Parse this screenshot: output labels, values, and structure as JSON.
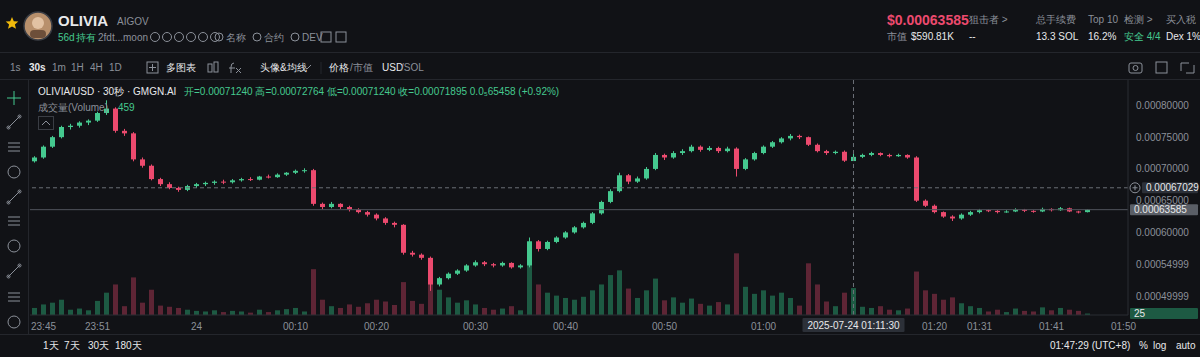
{
  "header": {
    "name": "OLIVIA",
    "tag": "AIGOV",
    "age": "56d",
    "holding": "持有",
    "address": "2fdt...moon",
    "links": [
      "名称",
      "合约",
      "DEV"
    ],
    "price": "$0.00063585",
    "market_cap_label": "市值",
    "market_cap": "$590.81K",
    "stats": [
      {
        "label": "狙击者 >",
        "value": "--"
      },
      {
        "label": "总手续费",
        "value": "13.3 SOL"
      },
      {
        "label": "Top 10",
        "value": "16.2%"
      },
      {
        "label": "检测 >",
        "value": "安全 4/4"
      },
      {
        "label": "买入税",
        "value": "Dex 1%"
      }
    ]
  },
  "toolbar": {
    "intervals": [
      "1s",
      "30s",
      "1m",
      "1H",
      "4H",
      "1D"
    ],
    "active_interval": "30s",
    "buttons": [
      "多图表",
      "头像&均线"
    ],
    "price_toggle": [
      "价格",
      "/市值"
    ],
    "currency_toggle": [
      "USD",
      "/SOL"
    ]
  },
  "chart_data": {
    "type": "candlestick",
    "title": "OLIVIA/USD · 30秒 · GMGN.AI",
    "ohlc_label": "开=0.00071240 高=0.00072764 低=0.00071240 收=0.00071895 0.0₅65458 (+0.92%)",
    "volume_label": "成交量(Volume)",
    "categories": [
      null,
      "23:45",
      null,
      null,
      null,
      null,
      null,
      "23:51",
      null,
      null,
      null,
      null,
      null,
      null,
      null,
      null,
      null,
      null,
      "24",
      null,
      null,
      null,
      null,
      null,
      null,
      null,
      null,
      null,
      null,
      "00:10",
      null,
      null,
      null,
      null,
      null,
      null,
      null,
      null,
      "00:20",
      null,
      null,
      null,
      null,
      null,
      null,
      null,
      null,
      null,
      null,
      "00:30",
      null,
      null,
      null,
      null,
      null,
      null,
      null,
      null,
      null,
      "00:40",
      null,
      null,
      null,
      null,
      null,
      null,
      null,
      null,
      null,
      null,
      "00:50",
      null,
      null,
      null,
      null,
      null,
      null,
      null,
      null,
      null,
      null,
      "01:00",
      null,
      null,
      null,
      null,
      null,
      null,
      null,
      null,
      null,
      null,
      null,
      null,
      null,
      null,
      null,
      null,
      null,
      null,
      "01:20",
      null,
      null,
      null,
      null,
      "01:31",
      null,
      null,
      null,
      null,
      null,
      null,
      null,
      "01:41",
      null,
      null,
      null,
      null,
      null,
      null,
      null,
      "01:50"
    ],
    "open": [
      0.000712,
      0.000718,
      0.000735,
      0.00075,
      0.000766,
      0.000768,
      0.000773,
      0.000776,
      0.000788,
      0.000795,
      0.00076,
      0.000756,
      0.000715,
      0.000705,
      0.000684,
      0.000676,
      0.00067,
      0.000667,
      0.000673,
      0.000676,
      0.000678,
      0.00068,
      0.000679,
      0.000682,
      0.000684,
      0.000683,
      0.000688,
      0.000687,
      0.000691,
      0.000694,
      0.000697,
      0.000698,
      0.000645,
      0.00064,
      0.000645,
      0.00064,
      0.000636,
      0.000632,
      0.000628,
      0.000622,
      0.000615,
      0.000612,
      0.000568,
      0.000565,
      0.00056,
      0.000518,
      0.000528,
      0.000535,
      0.00054,
      0.000548,
      0.000553,
      0.00055,
      0.000548,
      0.000552,
      0.000545,
      0.000548,
      0.000586,
      0.000574,
      0.000585,
      0.000592,
      0.0006,
      0.000608,
      0.000615,
      0.00063,
      0.000648,
      0.000665,
      0.00069,
      0.00068,
      0.000685,
      0.0007,
      0.000722,
      0.000718,
      0.000725,
      0.000728,
      0.000735,
      0.00073,
      0.000733,
      0.000728,
      0.000732,
      0.0007,
      0.000715,
      0.000725,
      0.000735,
      0.000742,
      0.000748,
      0.000752,
      0.00075,
      0.000738,
      0.000728,
      0.000725,
      0.000727,
      0.0007124,
      0.000719,
      0.000722,
      0.000725,
      0.000722,
      0.00072,
      0.000722,
      0.000718,
      0.00065,
      0.000642,
      0.000632,
      0.000625,
      0.000622,
      0.000628,
      0.000632,
      0.000635,
      0.000634,
      0.000632,
      0.000633,
      0.000636,
      0.000634,
      0.000633,
      0.000637,
      0.000635,
      0.000638,
      0.000633,
      0.000632,
      null,
      null,
      null,
      null
    ],
    "high": [
      0.00072,
      0.000737,
      0.000752,
      0.000768,
      0.000771,
      0.000775,
      0.000778,
      0.00079,
      0.000808,
      0.000797,
      0.000763,
      0.000758,
      0.000718,
      0.000707,
      0.000686,
      0.000679,
      0.000672,
      0.000675,
      0.000678,
      0.00068,
      0.000682,
      0.000683,
      0.000684,
      0.000686,
      0.000687,
      0.000689,
      0.000691,
      0.000693,
      0.000695,
      0.000699,
      0.000701,
      0.0007,
      0.000647,
      0.000648,
      0.000646,
      0.000642,
      0.000638,
      0.000634,
      0.00063,
      0.000624,
      0.000617,
      0.000613,
      0.000571,
      0.000567,
      0.000562,
      0.00053,
      0.000537,
      0.000542,
      0.00055,
      0.000556,
      0.000555,
      0.000552,
      0.000554,
      0.000553,
      0.00055,
      0.000592,
      0.000588,
      0.000587,
      0.000594,
      0.000602,
      0.00061,
      0.000617,
      0.000632,
      0.00065,
      0.000668,
      0.000694,
      0.000692,
      0.000688,
      0.000703,
      0.000725,
      0.000724,
      0.000728,
      0.000731,
      0.000738,
      0.000737,
      0.000736,
      0.000735,
      0.000735,
      0.000734,
      0.000717,
      0.000727,
      0.000737,
      0.000744,
      0.00075,
      0.000755,
      0.000754,
      0.000751,
      0.00074,
      0.00073,
      0.000729,
      0.000729,
      0.00072764,
      0.000724,
      0.000727,
      0.000726,
      0.000724,
      0.000724,
      0.000723,
      0.00072,
      0.000652,
      0.000644,
      0.000633,
      0.000627,
      0.00063,
      0.000634,
      0.000637,
      0.000636,
      0.000635,
      0.000635,
      0.000638,
      0.000637,
      0.000635,
      0.000639,
      0.000638,
      0.00064,
      0.000639,
      0.000634,
      0.0006365,
      null,
      null,
      null,
      null
    ],
    "low": [
      0.00071,
      0.000716,
      0.000733,
      0.000748,
      0.000762,
      0.000765,
      0.000769,
      0.000774,
      0.000785,
      0.000757,
      0.000752,
      0.000712,
      0.000702,
      0.000682,
      0.000673,
      0.000668,
      0.000664,
      0.000665,
      0.00067,
      0.000673,
      0.000675,
      0.000676,
      0.000677,
      0.00068,
      0.000681,
      0.000682,
      0.000685,
      0.000686,
      0.000689,
      0.000692,
      0.000694,
      0.000642,
      0.000636,
      0.000638,
      0.000637,
      0.000633,
      0.00063,
      0.000625,
      0.000619,
      0.000612,
      0.000608,
      0.000565,
      0.000562,
      0.000557,
      0.000508,
      0.000515,
      0.000526,
      0.000533,
      0.000538,
      0.000546,
      0.000547,
      0.000545,
      0.000546,
      0.000543,
      0.000543,
      0.000545,
      0.00057,
      0.000572,
      0.000583,
      0.00059,
      0.000598,
      0.000606,
      0.000613,
      0.000628,
      0.000646,
      0.000663,
      0.000676,
      0.000678,
      0.000683,
      0.000698,
      0.000714,
      0.000716,
      0.000722,
      0.000726,
      0.000727,
      0.000728,
      0.000725,
      0.000726,
      0.000688,
      0.000698,
      0.000713,
      0.000723,
      0.000733,
      0.00074,
      0.000745,
      0.000747,
      0.000736,
      0.000726,
      0.000722,
      0.000723,
      0.000711,
      0.0007124,
      0.000717,
      0.00072,
      0.00072,
      0.000718,
      0.000719,
      0.000716,
      0.000648,
      0.00064,
      0.00063,
      0.000623,
      0.000618,
      0.00062,
      0.000626,
      0.00063,
      0.000632,
      0.00063,
      0.000631,
      0.000632,
      0.000632,
      0.000631,
      0.000632,
      0.000633,
      0.000634,
      0.000632,
      0.00063,
      0.0006315,
      null,
      null,
      null,
      null
    ],
    "close": [
      0.000718,
      0.000735,
      0.00075,
      0.000766,
      0.000768,
      0.000773,
      0.000776,
      0.000788,
      0.000795,
      0.00076,
      0.000756,
      0.000715,
      0.000705,
      0.000684,
      0.000676,
      0.00067,
      0.000667,
      0.000673,
      0.000676,
      0.000678,
      0.00068,
      0.000679,
      0.000682,
      0.000684,
      0.000683,
      0.000688,
      0.000687,
      0.000691,
      0.000694,
      0.000697,
      0.000698,
      0.000645,
      0.00064,
      0.000645,
      0.00064,
      0.000636,
      0.000632,
      0.000628,
      0.000622,
      0.000615,
      0.000612,
      0.000568,
      0.000565,
      0.00056,
      0.000518,
      0.000528,
      0.000535,
      0.00054,
      0.000548,
      0.000553,
      0.00055,
      0.000548,
      0.000552,
      0.000545,
      0.000548,
      0.000586,
      0.000574,
      0.000585,
      0.000592,
      0.0006,
      0.000608,
      0.000615,
      0.00063,
      0.000648,
      0.000665,
      0.00069,
      0.00068,
      0.000685,
      0.0007,
      0.000722,
      0.000718,
      0.000725,
      0.000728,
      0.000735,
      0.00073,
      0.000733,
      0.000728,
      0.000732,
      0.0007,
      0.000715,
      0.000725,
      0.000735,
      0.000742,
      0.000748,
      0.000752,
      0.00075,
      0.000738,
      0.000728,
      0.000725,
      0.000727,
      0.000713,
      0.00071895,
      0.000722,
      0.000725,
      0.000722,
      0.00072,
      0.000722,
      0.000718,
      0.00065,
      0.000642,
      0.000632,
      0.000625,
      0.000622,
      0.000628,
      0.000632,
      0.000635,
      0.000634,
      0.000632,
      0.000633,
      0.000636,
      0.000634,
      0.000633,
      0.000637,
      0.000635,
      0.000638,
      0.000633,
      0.000632,
      0.00063585,
      null,
      null,
      null,
      null
    ],
    "volume": [
      120,
      180,
      210,
      260,
      90,
      110,
      80,
      240,
      380,
      520,
      150,
      640,
      210,
      430,
      160,
      140,
      120,
      90,
      70,
      60,
      80,
      50,
      70,
      60,
      40,
      90,
      50,
      80,
      100,
      120,
      60,
      780,
      260,
      150,
      120,
      180,
      140,
      200,
      260,
      230,
      170,
      560,
      240,
      190,
      820,
      430,
      300,
      210,
      250,
      180,
      120,
      90,
      110,
      150,
      80,
      1250,
      520,
      380,
      330,
      290,
      260,
      310,
      420,
      520,
      680,
      760,
      450,
      290,
      420,
      620,
      250,
      300,
      210,
      280,
      190,
      160,
      220,
      180,
      1050,
      480,
      360,
      420,
      330,
      380,
      290,
      160,
      880,
      520,
      230,
      150,
      380,
      459,
      140,
      120,
      150,
      90,
      80,
      110,
      740,
      420,
      360,
      260,
      300,
      200,
      150,
      120,
      60,
      90,
      50,
      110,
      70,
      60,
      130,
      80,
      120,
      90,
      70,
      25,
      null,
      null,
      null,
      null
    ],
    "ylim": [
      0.00047,
      0.00084
    ],
    "yticks": [
      {
        "value": 0.0008,
        "label": "0.00080000"
      },
      {
        "value": 0.00075,
        "label": "0.00075000"
      },
      {
        "value": 0.0007,
        "label": "0.00070000"
      },
      {
        "value": 0.00065,
        "label": "0.00065000"
      },
      {
        "value": 0.0006,
        "label": "0.00060000"
      },
      {
        "value": 0.00054999,
        "label": "0.00054999"
      },
      {
        "value": 0.00049999,
        "label": "0.00049999"
      }
    ],
    "y2lim": [
      0,
      4000
    ],
    "y2ticks": [],
    "crosshair": {
      "x": 91,
      "y": 0.00067029,
      "x_label": "2025-07-24 01:11:30"
    },
    "grid": false
  },
  "footer": {
    "ranges": [
      "1天",
      "7天",
      "30天",
      "180天"
    ],
    "clock": "01:47:29 (UTC+8)",
    "options": [
      "%",
      "log",
      "auto"
    ]
  }
}
